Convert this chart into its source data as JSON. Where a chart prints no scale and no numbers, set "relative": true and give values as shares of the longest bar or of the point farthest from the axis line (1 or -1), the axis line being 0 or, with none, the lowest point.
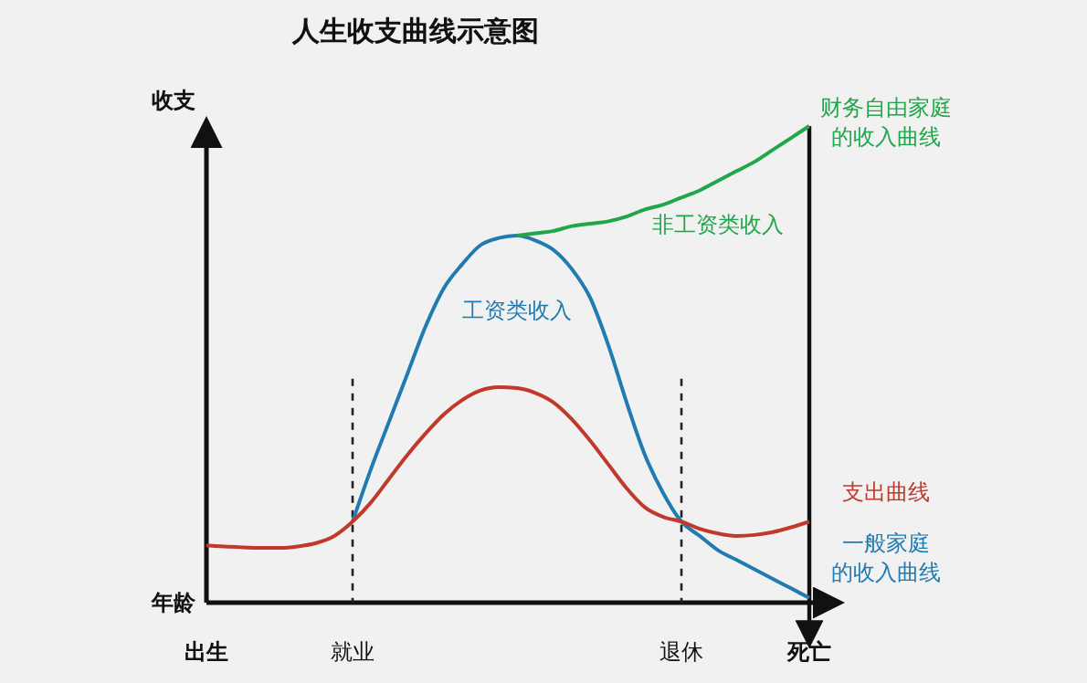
{
  "chart_data": {
    "type": "line",
    "title": "人生收支曲线示意图",
    "xlabel": "年龄",
    "ylabel": "收支",
    "relative": true,
    "categories": [
      "出生",
      null,
      null,
      null,
      null,
      null,
      null,
      null,
      "就业",
      null,
      null,
      null,
      null,
      null,
      null,
      null,
      null,
      null,
      null,
      null,
      null,
      null,
      null,
      null,
      null,
      null,
      "退休",
      null,
      null,
      null,
      null,
      null,
      null,
      "死亡"
    ],
    "series": [
      {
        "name": "一般家庭的收入曲线",
        "color": "#1f7bb0",
        "values": [
          null,
          null,
          null,
          null,
          null,
          null,
          null,
          null,
          0.17,
          0.28,
          0.38,
          0.48,
          0.58,
          0.66,
          0.71,
          0.75,
          0.765,
          0.77,
          0.76,
          0.74,
          0.7,
          0.64,
          0.54,
          0.42,
          0.31,
          0.23,
          0.17,
          0.14,
          0.11,
          0.09,
          0.07,
          0.05,
          0.03,
          0.01
        ]
      },
      {
        "name": "财务自由家庭的收入曲线",
        "color": "#21a64a",
        "values": [
          null,
          null,
          null,
          null,
          null,
          null,
          null,
          null,
          null,
          null,
          null,
          null,
          null,
          null,
          null,
          null,
          null,
          0.77,
          0.775,
          0.78,
          0.79,
          0.795,
          0.8,
          0.81,
          0.825,
          0.835,
          0.85,
          0.865,
          0.885,
          0.905,
          0.925,
          0.95,
          0.975,
          1
        ]
      },
      {
        "name": "支出曲线",
        "color": "#c0392b",
        "values": [
          0.12,
          0.118,
          0.116,
          0.115,
          0.115,
          0.118,
          0.125,
          0.14,
          0.17,
          0.21,
          0.26,
          0.31,
          0.355,
          0.395,
          0.425,
          0.445,
          0.452,
          0.45,
          0.44,
          0.42,
          0.385,
          0.34,
          0.29,
          0.24,
          0.2,
          0.18,
          0.17,
          0.155,
          0.145,
          0.14,
          0.142,
          0.148,
          0.158,
          0.17
        ]
      }
    ],
    "annotations": [
      "工资类收入",
      "非工资类收入"
    ],
    "ref_lines": [
      {
        "axis": "x",
        "value": "就业",
        "line_style": "dashed",
        "color": "#222222"
      },
      {
        "axis": "x",
        "value": "退休",
        "line_style": "dashed",
        "color": "#222222"
      },
      {
        "axis": "x",
        "value": "死亡",
        "line_style": "solid",
        "color": "#111111"
      }
    ],
    "grid": false,
    "legend": false,
    "marker": "none",
    "line_style": "solid"
  }
}
